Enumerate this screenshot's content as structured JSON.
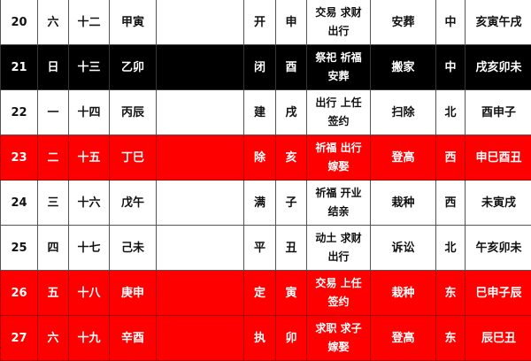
{
  "colors": {
    "red_row": "#ff0000",
    "black_row": "#000000",
    "white_row": "#ffffff"
  },
  "rows": [
    {
      "day": "20",
      "weekday": "六",
      "lunar": "十二",
      "ganzhi": "甲寅",
      "note": "",
      "jianchu": "开",
      "zhi": "申",
      "yi_line1": "交易 求财",
      "yi_line2": "出行",
      "ji": "安葬",
      "direction": "中",
      "hours": "亥寅午戌",
      "style": "white"
    },
    {
      "day": "21",
      "weekday": "日",
      "lunar": "十三",
      "ganzhi": "乙卯",
      "note": "",
      "jianchu": "闭",
      "zhi": "酉",
      "yi_line1": "祭祀 祈福",
      "yi_line2": "安葬",
      "ji": "搬家",
      "direction": "中",
      "hours": "戌亥卯未",
      "style": "black"
    },
    {
      "day": "22",
      "weekday": "一",
      "lunar": "十四",
      "ganzhi": "丙辰",
      "note": "",
      "jianchu": "建",
      "zhi": "戌",
      "yi_line1": "出行 上任",
      "yi_line2": "签约",
      "ji": "扫除",
      "direction": "北",
      "hours": "酉申子",
      "style": "white"
    },
    {
      "day": "23",
      "weekday": "二",
      "lunar": "十五",
      "ganzhi": "丁巳",
      "note": "",
      "jianchu": "除",
      "zhi": "亥",
      "yi_line1": "祈福 出行",
      "yi_line2": "嫁娶",
      "ji": "登高",
      "direction": "西",
      "hours": "申巳酉丑",
      "style": "red"
    },
    {
      "day": "24",
      "weekday": "三",
      "lunar": "十六",
      "ganzhi": "戊午",
      "note": "",
      "jianchu": "满",
      "zhi": "子",
      "yi_line1": "祈福 开业",
      "yi_line2": "结亲",
      "ji": "栽种",
      "direction": "西",
      "hours": "未寅戌",
      "style": "white"
    },
    {
      "day": "25",
      "weekday": "四",
      "lunar": "十七",
      "ganzhi": "己未",
      "note": "",
      "jianchu": "平",
      "zhi": "丑",
      "yi_line1": "动土 求财",
      "yi_line2": "出行",
      "ji": "诉讼",
      "direction": "北",
      "hours": "午亥卯未",
      "style": "white"
    },
    {
      "day": "26",
      "weekday": "五",
      "lunar": "十八",
      "ganzhi": "庚申",
      "note": "",
      "jianchu": "定",
      "zhi": "寅",
      "yi_line1": "交易 上任",
      "yi_line2": "签约",
      "ji": "栽种",
      "direction": "东",
      "hours": "巳申子辰",
      "style": "red"
    },
    {
      "day": "27",
      "weekday": "六",
      "lunar": "十九",
      "ganzhi": "辛酉",
      "note": "",
      "jianchu": "执",
      "zhi": "卯",
      "yi_line1": "求职 求子",
      "yi_line2": "嫁娶",
      "ji": "登高",
      "direction": "东",
      "hours": "辰巳丑",
      "style": "red"
    }
  ]
}
